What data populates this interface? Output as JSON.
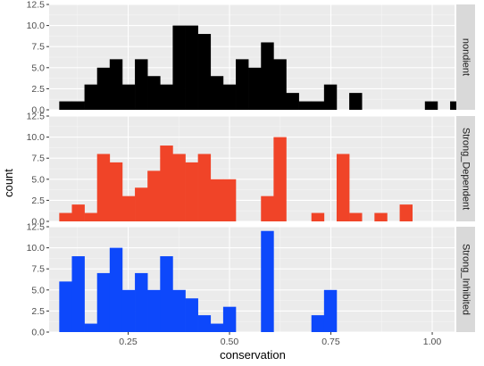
{
  "chart_data": {
    "type": "bar",
    "subtype": "faceted-histogram",
    "xlabel": "conservation",
    "ylabel": "count",
    "xlim": [
      0.055,
      1.055
    ],
    "ylim": [
      0,
      12.5
    ],
    "x_ticks": [
      0.25,
      0.5,
      0.75,
      1.0
    ],
    "x_tick_labels": [
      "0.25",
      "0.50",
      "0.75",
      "1.00"
    ],
    "y_ticks": [
      0,
      2.5,
      5,
      7.5,
      10,
      12.5
    ],
    "y_tick_labels": [
      "0.0",
      "2.5",
      "5.0",
      "7.5",
      "10.0",
      "12.5"
    ],
    "bin_start": 0.08,
    "bin_width": 0.0311,
    "grid": true,
    "legend": "none",
    "panels": [
      {
        "name": "nondient",
        "color": "#000000",
        "counts": [
          1,
          1,
          3,
          5,
          6,
          3,
          6,
          4,
          3,
          10,
          10,
          9,
          4,
          3,
          6,
          5,
          8,
          6,
          2,
          1,
          1,
          3,
          0,
          2,
          0,
          0,
          0,
          0,
          0,
          1,
          0,
          1
        ]
      },
      {
        "name": "Strong_Dependent",
        "color": "#F04428",
        "counts": [
          1,
          2,
          1,
          8,
          7,
          3,
          4,
          6,
          9,
          8,
          7,
          8,
          5,
          5,
          0,
          0,
          3,
          10,
          0,
          0,
          1,
          0,
          8,
          1,
          0,
          1,
          0,
          2,
          0,
          0,
          0,
          0
        ]
      },
      {
        "name": "Strong_Inhibited",
        "color": "#0D48FB",
        "counts": [
          6,
          9,
          1,
          7,
          10,
          5,
          7,
          5,
          9,
          5,
          4,
          2,
          1,
          3,
          0,
          0,
          12,
          0,
          0,
          0,
          2,
          5,
          0,
          0,
          0,
          0,
          0,
          0,
          0,
          0,
          0,
          0
        ]
      }
    ]
  }
}
